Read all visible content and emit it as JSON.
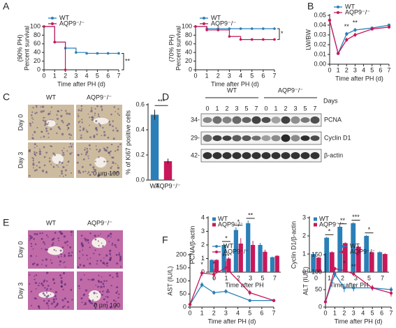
{
  "panel_labels": [
    "A",
    "B",
    "C",
    "D",
    "E",
    "F"
  ],
  "panel_c": {
    "columns": [
      "WT",
      "AQP9⁻/⁻"
    ],
    "rows": [
      "Day 0",
      "Day 3"
    ],
    "scale_bar": "0 μm 100"
  },
  "panel_d_blot": {
    "groups": [
      "WT",
      "AQP9⁻/⁻"
    ],
    "days_label": "Days",
    "days": [
      "0",
      "1",
      "2",
      "3",
      "5",
      "7"
    ],
    "bands": [
      "PCNA",
      "Cyclin D1",
      "β-actin"
    ],
    "markers": [
      "34-",
      "29-",
      "42-"
    ]
  },
  "panel_e": {
    "columns": [
      "WT",
      "AQP9⁻/⁻"
    ],
    "rows": [
      "Day 0",
      "Day 3"
    ],
    "scale_bar": "0 μm 100"
  },
  "chart_data": [
    {
      "type": "step",
      "ylabel": [
        "Percent survival",
        "(90% PH)"
      ],
      "xlabel": "Time after PH (d)",
      "xlim": [
        0,
        7
      ],
      "xticks": [
        0,
        1,
        2,
        3,
        4,
        5,
        6,
        7
      ],
      "ylim": [
        0,
        100
      ],
      "yticks": [
        0,
        20,
        40,
        60,
        80,
        100
      ],
      "legend": "upper left",
      "series": [
        {
          "name": "WT",
          "color": "#2a7fb8",
          "x": [
            0,
            1,
            2,
            3,
            4,
            5,
            6,
            7
          ],
          "values": [
            100,
            64,
            50,
            40,
            38,
            38,
            38,
            38
          ]
        },
        {
          "name": "AQP9⁻/⁻",
          "color": "#c8185a",
          "x": [
            0,
            1,
            2
          ],
          "values": [
            100,
            64,
            0
          ]
        }
      ],
      "annotations": [
        {
          "text": "**",
          "x": 7
        }
      ]
    },
    {
      "type": "step",
      "ylabel": [
        "Percent survival",
        "(70% PH)"
      ],
      "xlabel": "Time after PH (d)",
      "xlim": [
        0,
        7
      ],
      "xticks": [
        0,
        1,
        2,
        3,
        4,
        5,
        6,
        7
      ],
      "ylim": [
        0,
        100
      ],
      "yticks": [
        0,
        20,
        40,
        60,
        80,
        100
      ],
      "legend": "upper left",
      "series": [
        {
          "name": "WT",
          "color": "#2a7fb8",
          "x": [
            0,
            1,
            2,
            3,
            4,
            5,
            6,
            7
          ],
          "values": [
            100,
            95,
            95,
            95,
            95,
            95,
            95,
            95
          ]
        },
        {
          "name": "AQP9⁻/⁻",
          "color": "#c8185a",
          "x": [
            0,
            1,
            2,
            3,
            4,
            5,
            6,
            7
          ],
          "values": [
            100,
            92,
            92,
            77,
            70,
            70,
            70,
            70
          ]
        }
      ],
      "annotations": [
        {
          "text": "*",
          "x": 7
        }
      ]
    },
    {
      "type": "line",
      "ylabel": "LW/BW",
      "xlabel": "Time after PH (d)",
      "x": [
        0,
        1,
        2,
        3,
        5,
        7
      ],
      "xlim": [
        0,
        7
      ],
      "xticks": [
        0,
        1,
        2,
        3,
        4,
        5,
        6,
        7
      ],
      "ylim": [
        0,
        0.05
      ],
      "yticks": [
        {
          "value": 0,
          "label": "0.00"
        },
        {
          "value": 0.01,
          "label": "0.01"
        },
        {
          "value": 0.02,
          "label": "0.02"
        },
        {
          "value": 0.03,
          "label": "0.03"
        },
        {
          "value": 0.04,
          "label": "0.04"
        },
        {
          "value": 0.05,
          "label": "0.05"
        }
      ],
      "legend": "upper left",
      "series": [
        {
          "name": "WT",
          "color": "#2a7fb8",
          "values": [
            0.045,
            0.011,
            0.031,
            0.035,
            0.037,
            0.04
          ],
          "errors": [
            0.001,
            0.001,
            0.002,
            0.002,
            0.001,
            0.001
          ]
        },
        {
          "name": "AQP9⁻/⁻",
          "color": "#c8185a",
          "values": [
            0.045,
            0.011,
            0.025,
            0.03,
            0.036,
            0.038
          ],
          "errors": [
            0.001,
            0.001,
            0.002,
            0.002,
            0.001,
            0.001
          ]
        }
      ],
      "annotations": [
        {
          "text": "**",
          "x": 2
        },
        {
          "text": "**",
          "x": 3
        }
      ]
    },
    {
      "type": "bar",
      "ylabel": "% of Ki67 positive cells",
      "categories": [
        "WT",
        "AQP9⁻/⁻"
      ],
      "values": [
        0.52,
        0.15
      ],
      "errors": [
        0.04,
        0.02
      ],
      "colors": [
        "#2a7fb8",
        "#c8185a"
      ],
      "ylim": [
        0,
        0.6
      ],
      "yticks": [
        {
          "value": 0,
          "label": "0.0"
        },
        {
          "value": 0.2,
          "label": "0.2"
        },
        {
          "value": 0.4,
          "label": "0.4"
        },
        {
          "value": 0.6,
          "label": "0.6"
        }
      ],
      "annotations": [
        {
          "text": "***",
          "x": 0.5
        }
      ]
    },
    {
      "type": "grouped_bar",
      "ylabel": "PCNA/β-actin",
      "xlabel": "Time after PH",
      "categories": [
        "0",
        "1",
        "2",
        "3",
        "5",
        "7"
      ],
      "ylim": [
        0,
        4
      ],
      "yticks": [
        0,
        1,
        2,
        3,
        4
      ],
      "legend": "upper left",
      "series": [
        {
          "name": "WT",
          "color": "#2a7fb8",
          "values": [
            0.9,
            2.0,
            3.1,
            3.6,
            2.0,
            1.1
          ],
          "errors": [
            0.05,
            0.1,
            0.2,
            0.2,
            0.15,
            0.05
          ]
        },
        {
          "name": "AQP9⁻/⁻",
          "color": "#c8185a",
          "values": [
            0.9,
            1.0,
            2.1,
            2.0,
            1.5,
            1.2
          ],
          "errors": [
            0.05,
            0.1,
            0.4,
            0.3,
            0.15,
            0.05
          ]
        }
      ],
      "annotations": [
        {
          "text": "*",
          "x": 1
        },
        {
          "text": "*",
          "x": 2
        },
        {
          "text": "**",
          "x": 3
        }
      ]
    },
    {
      "type": "grouped_bar",
      "ylabel": "Cyclin D1/β-actin",
      "xlabel": "Time after PH",
      "categories": [
        "0",
        "1",
        "2",
        "3",
        "5",
        "7"
      ],
      "ylim": [
        0,
        3
      ],
      "yticks": [
        0,
        1,
        2,
        3
      ],
      "legend": "upper left",
      "series": [
        {
          "name": "WT",
          "color": "#2a7fb8",
          "values": [
            1.0,
            1.9,
            2.5,
            2.7,
            2.0,
            1.1
          ],
          "errors": [
            0.05,
            0.05,
            0.05,
            0.05,
            0.05,
            0.05
          ]
        },
        {
          "name": "AQP9⁻/⁻",
          "color": "#c8185a",
          "values": [
            0.8,
            1.1,
            1.6,
            1.4,
            1.1,
            1.0
          ],
          "errors": [
            0.05,
            0.05,
            0.05,
            0.05,
            0.05,
            0.05
          ]
        }
      ],
      "annotations": [
        {
          "text": "*",
          "x": 1
        },
        {
          "text": "**",
          "x": 2
        },
        {
          "text": "***",
          "x": 3
        },
        {
          "text": "*",
          "x": 4
        }
      ]
    },
    {
      "type": "line",
      "ylabel": "AST (IU/L)",
      "xlabel": "Time after PH (d)",
      "x": [
        0,
        1,
        2,
        3,
        5,
        7
      ],
      "xlim": [
        0,
        7
      ],
      "xticks": [
        0,
        1,
        2,
        3,
        4,
        5,
        6,
        7
      ],
      "ylim": [
        0,
        200
      ],
      "yticks": [
        0,
        50,
        100,
        150,
        200
      ],
      "legend": "upper center",
      "series": [
        {
          "name": "WT",
          "color": "#2a7fb8",
          "values": [
            10,
            85,
            55,
            60,
            25,
            25
          ],
          "errors": [
            2,
            10,
            8,
            8,
            4,
            3
          ]
        },
        {
          "name": "AQP9⁻/⁻",
          "color": "#c8185a",
          "values": [
            10,
            130,
            125,
            150,
            55,
            25
          ],
          "errors": [
            2,
            12,
            20,
            25,
            10,
            3
          ]
        }
      ],
      "annotations": [
        {
          "text": "*",
          "x": 1
        },
        {
          "text": "*",
          "x": 2
        },
        {
          "text": "***",
          "x": 3
        }
      ]
    },
    {
      "type": "line",
      "ylabel": "ALT (IU/L)",
      "xlabel": "Time after PH (d)",
      "x": [
        0,
        1,
        2,
        3,
        5,
        7
      ],
      "xlim": [
        0,
        7
      ],
      "xticks": [
        0,
        1,
        2,
        3,
        4,
        5,
        6,
        7
      ],
      "ylim": [
        0,
        150
      ],
      "yticks": [
        0,
        50,
        100,
        150
      ],
      "legend": "upper center",
      "series": [
        {
          "name": "WT",
          "color": "#2a7fb8",
          "values": [
            15,
            95,
            55,
            55,
            55,
            50
          ],
          "errors": [
            2,
            10,
            12,
            10,
            8,
            8
          ]
        },
        {
          "name": "AQP9⁻/⁻",
          "color": "#c8185a",
          "values": [
            15,
            110,
            105,
            95,
            55,
            40
          ],
          "errors": [
            2,
            5,
            6,
            6,
            8,
            10
          ]
        }
      ],
      "annotations": [
        {
          "text": "*",
          "x": 2
        },
        {
          "text": "**",
          "x": 3
        }
      ]
    }
  ]
}
